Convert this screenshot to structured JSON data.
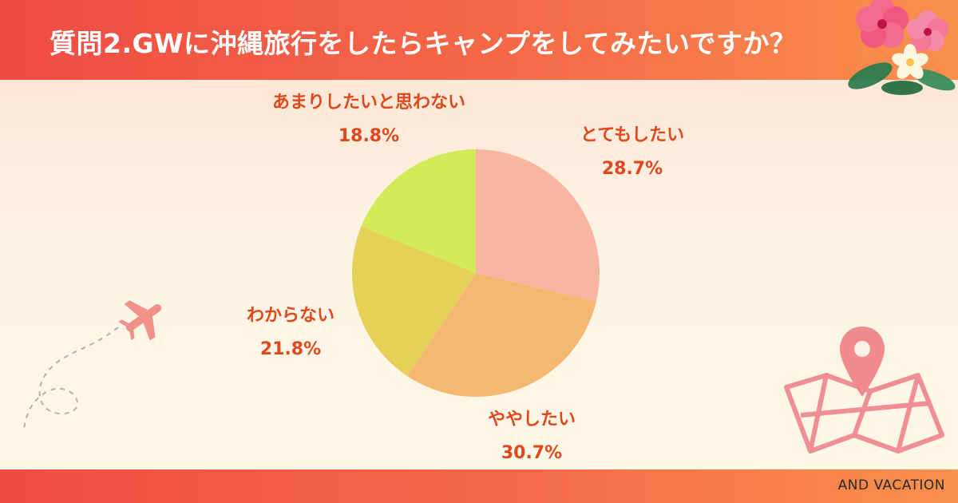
{
  "header": {
    "title": "質問2.GWに沖縄旅行をしたらキャンプをしてみたいですか？"
  },
  "footer": {
    "brand": "AND VACATION"
  },
  "chart_data": {
    "type": "pie",
    "title": "質問2.GWに沖縄旅行をしたらキャンプをしてみたいですか？",
    "slices": [
      {
        "label": "とてもしたい",
        "value": 28.7,
        "display": "28.7%",
        "color": "#f7b5a2"
      },
      {
        "label": "ややしたい",
        "value": 30.7,
        "display": "30.7%",
        "color": "#f4b870"
      },
      {
        "label": "わからない",
        "value": 21.8,
        "display": "21.8%",
        "color": "#e6d158"
      },
      {
        "label": "あまりしたいと思わない",
        "value": 18.8,
        "display": "18.8%",
        "color": "#d3eb58"
      }
    ],
    "start_angle_deg": 0,
    "direction": "clockwise",
    "legend": "none",
    "label_color": "#e0481c"
  },
  "decorations": {
    "icons": [
      "hibiscus-flower-icon",
      "airplane-icon",
      "map-pin-icon",
      "folded-map-icon"
    ]
  }
}
